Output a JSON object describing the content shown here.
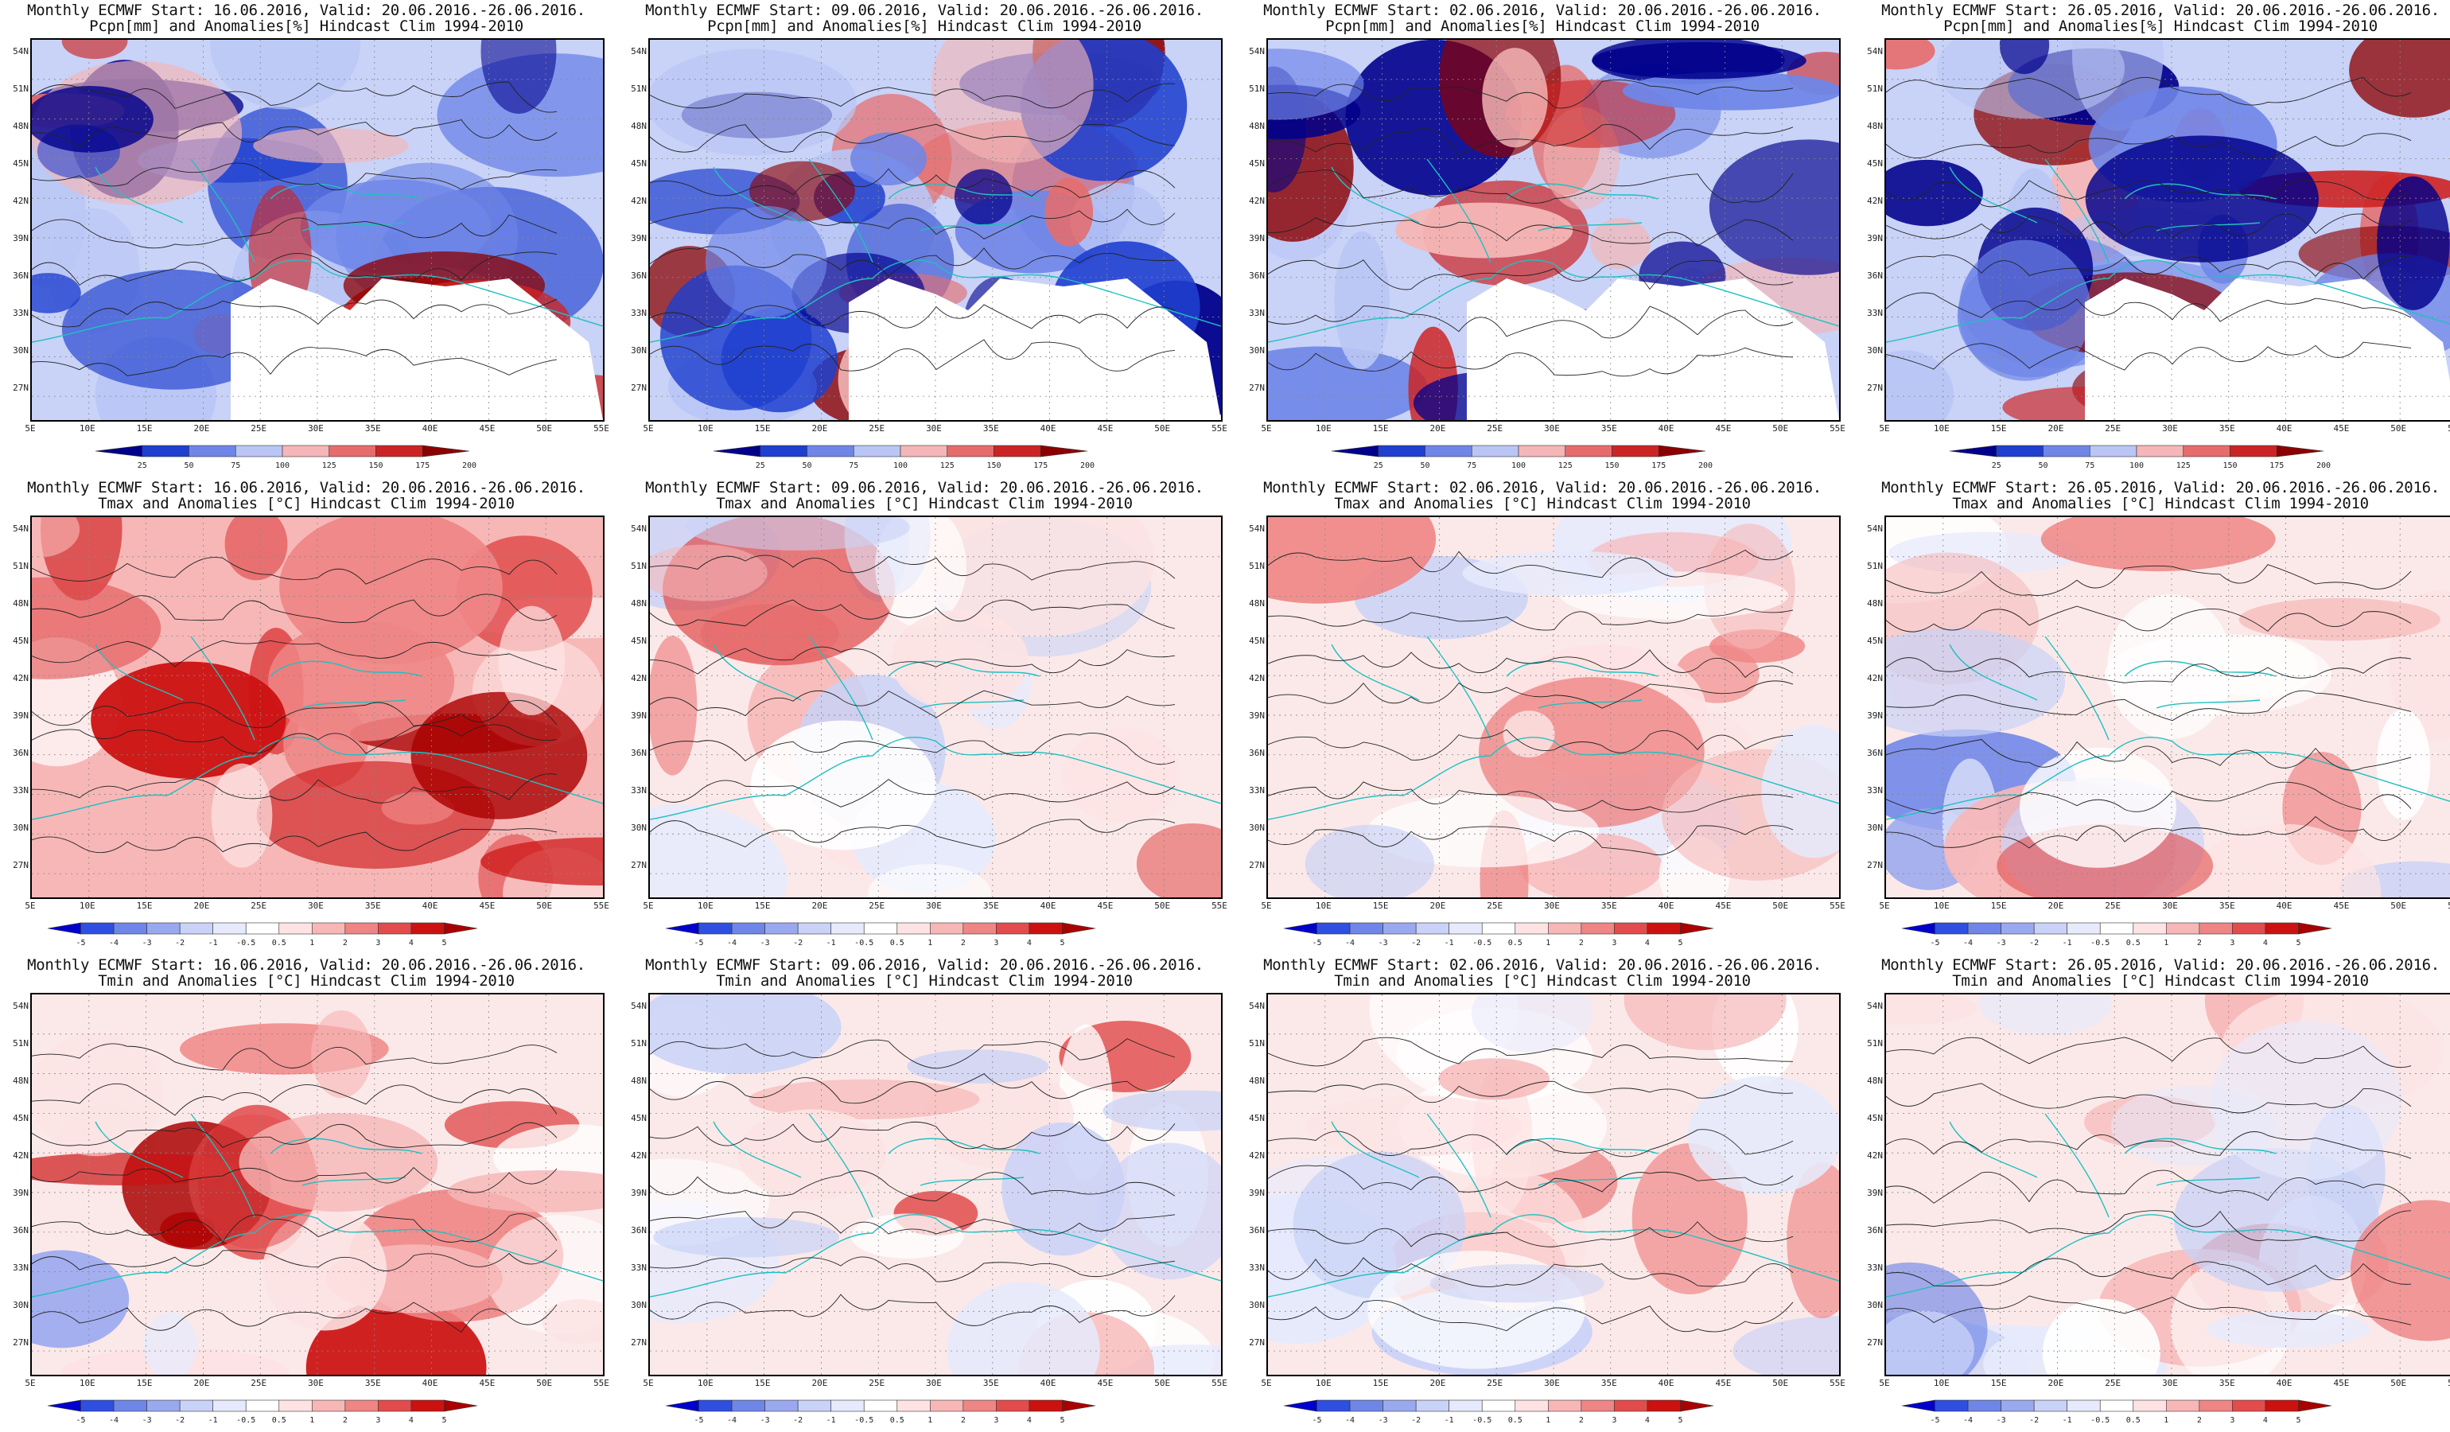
{
  "common": {
    "lon_ticks": [
      "5E",
      "10E",
      "15E",
      "20E",
      "25E",
      "30E",
      "35E",
      "40E",
      "45E",
      "50E",
      "55E"
    ],
    "lat_ticks": [
      "54N",
      "51N",
      "48N",
      "45N",
      "42N",
      "39N",
      "36N",
      "33N",
      "30N",
      "27N"
    ]
  },
  "rows": [
    {
      "variable": "Pcpn[mm] and Anomalies[%] Hindcast Clim 1994-2010",
      "colorbar": [
        "25",
        "50",
        "75",
        "100",
        "125",
        "150",
        "175",
        "200"
      ],
      "palette": [
        "#00008b",
        "#1e3fcf",
        "#6f86e8",
        "#b9c6f5",
        "#f4b6b6",
        "#e66c6c",
        "#cc2424",
        "#8b0000"
      ]
    },
    {
      "variable": "Tmax and Anomalies [°C] Hindcast Clim 1994-2010",
      "colorbar": [
        "-5",
        "-4",
        "-3",
        "-2",
        "-1",
        "-0.5",
        "0.5",
        "1",
        "2",
        "3",
        "4",
        "5"
      ],
      "palette": [
        "#0000cd",
        "#2e4fe0",
        "#6f86e8",
        "#9aa9ef",
        "#c9d2f7",
        "#e6eafc",
        "#ffffff",
        "#fde3e3",
        "#f7b7b7",
        "#ef8585",
        "#e24c4c",
        "#cc1111",
        "#aa0000"
      ]
    },
    {
      "variable": "Tmin and Anomalies [°C] Hindcast Clim 1994-2010",
      "colorbar": [
        "-5",
        "-4",
        "-3",
        "-2",
        "-1",
        "-0.5",
        "0.5",
        "1",
        "2",
        "3",
        "4",
        "5"
      ],
      "palette": [
        "#0000cd",
        "#2e4fe0",
        "#6f86e8",
        "#9aa9ef",
        "#c9d2f7",
        "#e6eafc",
        "#ffffff",
        "#fde3e3",
        "#f7b7b7",
        "#ef8585",
        "#e24c4c",
        "#cc1111",
        "#aa0000"
      ]
    }
  ],
  "panels": [
    {
      "title1": "Monthly ECMWF Start: 16.06.2016, Valid: 20.06.2016.-26.06.2016.",
      "title2": "Pcpn[mm] and Anomalies[%] Hindcast Clim 1994-2010"
    },
    {
      "title1": "Monthly ECMWF Start: 09.06.2016, Valid: 20.06.2016.-26.06.2016.",
      "title2": "Pcpn[mm] and Anomalies[%] Hindcast Clim 1994-2010"
    },
    {
      "title1": "Monthly ECMWF Start: 02.06.2016, Valid: 20.06.2016.-26.06.2016.",
      "title2": "Pcpn[mm] and Anomalies[%] Hindcast Clim 1994-2010"
    },
    {
      "title1": "Monthly ECMWF Start: 26.05.2016, Valid: 20.06.2016.-26.06.2016.",
      "title2": "Pcpn[mm] and Anomalies[%] Hindcast Clim 1994-2010"
    },
    {
      "title1": "Monthly ECMWF Start: 16.06.2016, Valid: 20.06.2016.-26.06.2016.",
      "title2": "Tmax and Anomalies [°C] Hindcast Clim 1994-2010"
    },
    {
      "title1": "Monthly ECMWF Start: 09.06.2016, Valid: 20.06.2016.-26.06.2016.",
      "title2": "Tmax and Anomalies [°C] Hindcast Clim 1994-2010"
    },
    {
      "title1": "Monthly ECMWF Start: 02.06.2016, Valid: 20.06.2016.-26.06.2016.",
      "title2": "Tmax and Anomalies [°C] Hindcast Clim 1994-2010"
    },
    {
      "title1": "Monthly ECMWF Start: 26.05.2016, Valid: 20.06.2016.-26.06.2016.",
      "title2": "Tmax and Anomalies [°C] Hindcast Clim 1994-2010"
    },
    {
      "title1": "Monthly ECMWF Start: 16.06.2016, Valid: 20.06.2016.-26.06.2016.",
      "title2": "Tmin and Anomalies [°C] Hindcast Clim 1994-2010"
    },
    {
      "title1": "Monthly ECMWF Start: 09.06.2016, Valid: 20.06.2016.-26.06.2016.",
      "title2": "Tmin and Anomalies [°C] Hindcast Clim 1994-2010"
    },
    {
      "title1": "Monthly ECMWF Start: 02.06.2016, Valid: 20.06.2016.-26.06.2016.",
      "title2": "Tmin and Anomalies [°C] Hindcast Clim 1994-2010"
    },
    {
      "title1": "Monthly ECMWF Start: 26.05.2016, Valid: 20.06.2016.-26.06.2016.",
      "title2": "Tmin and Anomalies [°C] Hindcast Clim 1994-2010"
    }
  ]
}
